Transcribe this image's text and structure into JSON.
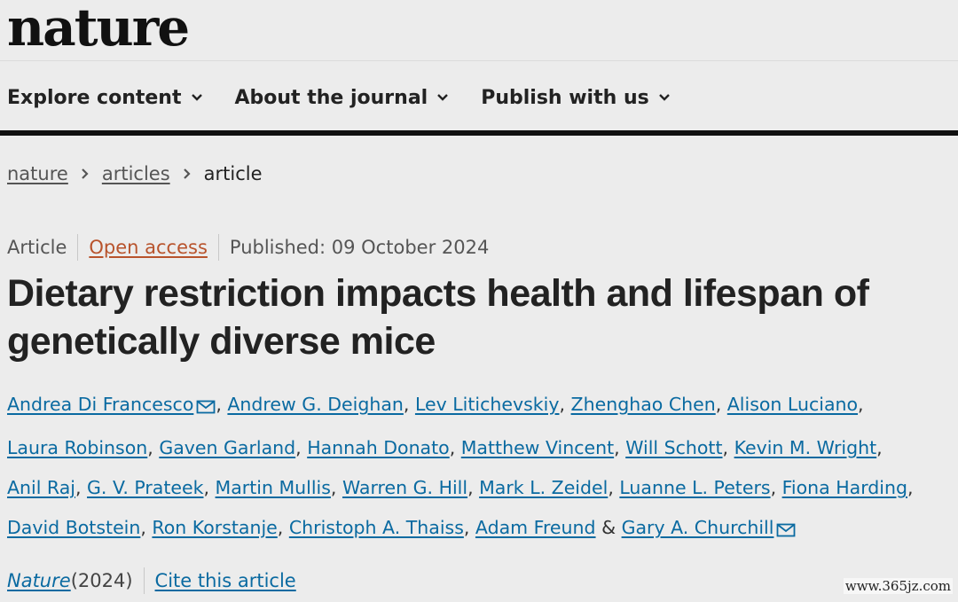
{
  "logo": "nature",
  "nav": {
    "items": [
      {
        "label": "Explore content"
      },
      {
        "label": "About the journal"
      },
      {
        "label": "Publish with us"
      }
    ]
  },
  "breadcrumb": {
    "items": [
      "nature",
      "articles"
    ],
    "current": "article"
  },
  "meta": {
    "type": "Article",
    "access": "Open access",
    "published": "Published: 09 October 2024"
  },
  "title": "Dietary restriction impacts health and lifespan of genetically diverse mice",
  "authors": {
    "list": [
      "Andrea Di Francesco",
      "Andrew G. Deighan",
      "Lev Litichevskiy",
      "Zhenghao Chen",
      "Alison Luciano",
      "Laura Robinson",
      "Gaven Garland",
      "Hannah Donato",
      "Matthew Vincent",
      "Will Schott",
      "Kevin M. Wright",
      "Anil Raj",
      "G. V. Prateek",
      "Martin Mullis",
      "Warren G. Hill",
      "Mark L. Zeidel",
      "Luanne L. Peters",
      "Fiona Harding",
      "David Botstein",
      "Ron Korstanje",
      "Christoph A. Thaiss",
      "Adam Freund",
      "Gary A. Churchill"
    ],
    "comma": ", ",
    "ampersand": " & "
  },
  "citation": {
    "journal": "Nature",
    "year": " (2024)",
    "cite_label": "Cite this article"
  },
  "watermark": "www.365jz.com",
  "colors": {
    "link": "#0a6aa1",
    "open_access": "#b8532c",
    "background": "#ececec"
  }
}
